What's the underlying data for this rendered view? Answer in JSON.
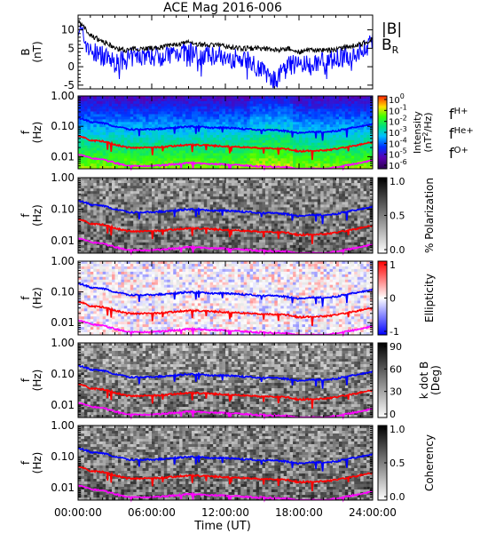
{
  "title": "ACE Mag 2016-006",
  "x_axis": {
    "label": "Time (UT)",
    "ticks": [
      "00:00:00",
      "06:00:00",
      "12:00:00",
      "18:00:00",
      "24:00:00"
    ],
    "range_hours": [
      0,
      24
    ]
  },
  "panels": [
    {
      "id": "b-field",
      "ylabel": "B",
      "yunit": "(nT)",
      "yticks": [
        "10",
        "5",
        "0",
        "-5"
      ],
      "legend": [
        "|B|",
        "B"
      ],
      "legend_sub": "R",
      "colors": {
        "B_mag": "#000000",
        "B_R": "#0000ff"
      }
    },
    {
      "id": "intensity",
      "ylabel": "f",
      "yunit": "(Hz)",
      "yticks": [
        "1.00",
        "0.10",
        "0.01"
      ],
      "colorbar_title": "Intensity",
      "colorbar_unit_pre": "(nT",
      "colorbar_unit_sup": "2",
      "colorbar_unit_post": "/Hz)",
      "colorbar_ticks_exp": [
        "0",
        "-1",
        "-2",
        "-3",
        "-4",
        "-5",
        "-6"
      ],
      "colorbar_base": "10",
      "colormap": "rainbow",
      "legend": [
        {
          "name": "f",
          "sub": "H+",
          "color": "#0000ff"
        },
        {
          "name": "f",
          "sub": "He+",
          "color": "#ff0000"
        },
        {
          "name": "f",
          "sub": "O+",
          "color": "#ff00ff"
        }
      ]
    },
    {
      "id": "polarization",
      "ylabel": "f",
      "yunit": "(Hz)",
      "yticks": [
        "1.00",
        "0.10",
        "0.01"
      ],
      "colorbar_title": "% Polarization",
      "colorbar_ticks": [
        "1.0",
        "0.5",
        "0.0"
      ],
      "colormap": "gray"
    },
    {
      "id": "ellipticity",
      "ylabel": "f",
      "yunit": "(Hz)",
      "yticks": [
        "1.00",
        "0.10",
        "0.01"
      ],
      "colorbar_title": "Ellipticity",
      "colorbar_ticks": [
        "1",
        "0",
        "-1"
      ],
      "colormap": "bwr"
    },
    {
      "id": "kdotb",
      "ylabel": "f",
      "yunit": "(Hz)",
      "yticks": [
        "1.00",
        "0.10",
        "0.01"
      ],
      "colorbar_title": "k dot B",
      "colorbar_unit": "(Deg)",
      "colorbar_ticks": [
        "90",
        "60",
        "30",
        "0"
      ],
      "colormap": "gray"
    },
    {
      "id": "coherency",
      "ylabel": "f",
      "yunit": "(Hz)",
      "yticks": [
        "1.00",
        "0.10",
        "0.01"
      ],
      "colorbar_title": "Coherency",
      "colorbar_ticks": [
        "1.0",
        "0.5",
        "0.0"
      ],
      "colormap": "gray"
    }
  ],
  "chart_data": {
    "type": "line",
    "title": "ACE Mag 2016-006",
    "xlabel": "Time (UT)",
    "x_hours": [
      0,
      1,
      2,
      3,
      4,
      5,
      6,
      7,
      8,
      9,
      10,
      11,
      12,
      13,
      14,
      15,
      16,
      17,
      18,
      19,
      20,
      21,
      22,
      23,
      24
    ],
    "b_panel": {
      "ylabel": "B (nT)",
      "ylim": [
        -6,
        14
      ],
      "series": [
        {
          "name": "|B|",
          "values": [
            12.5,
            8.5,
            7,
            5,
            4.5,
            5,
            5,
            5.5,
            6,
            6.5,
            6,
            6,
            5.5,
            5,
            5,
            5,
            4.5,
            5,
            4,
            4.5,
            4.5,
            4.5,
            5.5,
            6,
            7.5
          ]
        },
        {
          "name": "B_R",
          "values": [
            11,
            4,
            3,
            1,
            2,
            3,
            3,
            3,
            4,
            4,
            3,
            3,
            3,
            2,
            2,
            -1,
            -4,
            0,
            1,
            0,
            2,
            2,
            3,
            4,
            7
          ]
        }
      ]
    },
    "frequency_panels": {
      "ylabel": "f (Hz)",
      "ylim": [
        0.004,
        1.0
      ],
      "yscale": "log",
      "series": [
        {
          "name": "f H+",
          "values": [
            0.19,
            0.14,
            0.13,
            0.1,
            0.08,
            0.08,
            0.08,
            0.085,
            0.09,
            0.1,
            0.095,
            0.09,
            0.09,
            0.085,
            0.08,
            0.075,
            0.075,
            0.07,
            0.06,
            0.065,
            0.065,
            0.07,
            0.085,
            0.1,
            0.12
          ]
        },
        {
          "name": "f He+",
          "values": [
            0.048,
            0.035,
            0.032,
            0.025,
            0.02,
            0.02,
            0.02,
            0.021,
            0.023,
            0.025,
            0.024,
            0.023,
            0.022,
            0.021,
            0.02,
            0.019,
            0.019,
            0.018,
            0.015,
            0.016,
            0.016,
            0.018,
            0.021,
            0.025,
            0.03
          ]
        },
        {
          "name": "f O+",
          "values": [
            0.012,
            0.009,
            0.008,
            0.0063,
            0.005,
            0.005,
            0.005,
            0.0053,
            0.0057,
            0.0063,
            0.006,
            0.0057,
            0.0056,
            0.0053,
            0.005,
            0.0048,
            0.0047,
            0.0045,
            0.0038,
            0.004,
            0.004,
            0.0045,
            0.0053,
            0.0063,
            0.0075
          ]
        }
      ]
    }
  }
}
